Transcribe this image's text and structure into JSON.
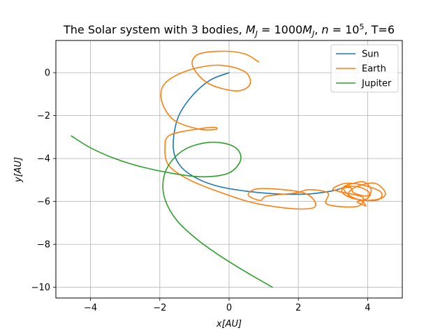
{
  "chart_data": {
    "type": "line",
    "title_parts": {
      "prefix": "The Solar system with 3 bodies, ",
      "m": "M",
      "m_sub": "J",
      "eq": " = 1000",
      "m2": "M",
      "m2_sub": "J",
      "sep": ", ",
      "n": "n",
      "n_eq": " = 10",
      "n_exp": "5",
      "suffix": ", T=6"
    },
    "xlabel_parts": {
      "var": "x",
      "unit": "[AU]"
    },
    "ylabel_parts": {
      "var": "y",
      "unit": "[AU]"
    },
    "xlim": [
      -5,
      5
    ],
    "ylim": [
      -10.5,
      1.5
    ],
    "xticks": [
      -4,
      -2,
      0,
      2,
      4
    ],
    "xtick_labels": [
      "−4",
      "−2",
      "0",
      "2",
      "4"
    ],
    "yticks": [
      0,
      -2,
      -4,
      -6,
      -8,
      -10
    ],
    "ytick_labels": [
      "0",
      "−2",
      "−4",
      "−6",
      "−8",
      "−10"
    ],
    "grid": true,
    "legend_position": "top-right",
    "series": [
      {
        "name": "Sun",
        "color": "#1f77b4",
        "points": [
          [
            0.0,
            0.0
          ],
          [
            -0.55,
            -0.35
          ],
          [
            -1.05,
            -1.05
          ],
          [
            -1.45,
            -2.0
          ],
          [
            -1.6,
            -3.0
          ],
          [
            -1.58,
            -3.8
          ],
          [
            -1.35,
            -4.45
          ],
          [
            -0.9,
            -4.95
          ],
          [
            -0.3,
            -5.3
          ],
          [
            0.5,
            -5.52
          ],
          [
            1.4,
            -5.65
          ],
          [
            2.3,
            -5.65
          ],
          [
            3.0,
            -5.5
          ],
          [
            3.3,
            -5.35
          ]
        ]
      },
      {
        "name": "Earth",
        "color": "#ff7f0e",
        "points": [
          [
            0.85,
            0.5
          ],
          [
            0.45,
            0.88
          ],
          [
            -0.2,
            1.0
          ],
          [
            -0.9,
            0.85
          ],
          [
            -1.05,
            0.3
          ],
          [
            -0.6,
            -0.5
          ],
          [
            0.2,
            -0.85
          ],
          [
            0.6,
            -0.55
          ],
          [
            0.45,
            0.05
          ],
          [
            -0.3,
            0.35
          ],
          [
            -1.2,
            0.1
          ],
          [
            -1.85,
            -0.5
          ],
          [
            -1.95,
            -1.3
          ],
          [
            -1.6,
            -2.2
          ],
          [
            -0.9,
            -2.62
          ],
          [
            -0.4,
            -2.65
          ],
          [
            -0.4,
            -2.55
          ],
          [
            -0.8,
            -2.6
          ],
          [
            -1.7,
            -2.9
          ],
          [
            -1.85,
            -3.5
          ],
          [
            -1.75,
            -4.3
          ],
          [
            -1.2,
            -4.95
          ],
          [
            -0.3,
            -5.55
          ],
          [
            0.8,
            -6.1
          ],
          [
            2.0,
            -6.35
          ],
          [
            2.5,
            -6.2
          ],
          [
            2.15,
            -5.6
          ],
          [
            0.9,
            -5.4
          ],
          [
            0.55,
            -5.7
          ],
          [
            0.9,
            -5.95
          ],
          [
            1.1,
            -5.75
          ],
          [
            1.95,
            -5.6
          ],
          [
            2.3,
            -5.45
          ],
          [
            2.85,
            -5.6
          ],
          [
            2.8,
            -6.1
          ],
          [
            3.3,
            -6.25
          ],
          [
            3.75,
            -6.2
          ],
          [
            3.85,
            -5.8
          ],
          [
            3.2,
            -5.55
          ],
          [
            3.0,
            -5.4
          ],
          [
            3.4,
            -5.15
          ],
          [
            4.0,
            -5.3
          ],
          [
            4.4,
            -5.6
          ],
          [
            4.25,
            -5.95
          ],
          [
            3.55,
            -5.85
          ],
          [
            3.45,
            -5.6
          ],
          [
            3.7,
            -5.3
          ],
          [
            4.2,
            -5.15
          ],
          [
            4.5,
            -5.55
          ],
          [
            4.4,
            -5.85
          ],
          [
            3.9,
            -5.95
          ],
          [
            3.5,
            -5.75
          ],
          [
            3.3,
            -5.35
          ],
          [
            3.6,
            -5.15
          ],
          [
            3.9,
            -5.1
          ],
          [
            4.1,
            -5.45
          ],
          [
            4.0,
            -5.85
          ],
          [
            3.7,
            -6.0
          ],
          [
            3.85,
            -6.15
          ],
          [
            3.95,
            -6.2
          ],
          [
            3.8,
            -5.95
          ],
          [
            3.4,
            -5.75
          ],
          [
            3.25,
            -5.5
          ],
          [
            3.4,
            -5.3
          ],
          [
            3.8,
            -5.35
          ],
          [
            4.05,
            -5.6
          ],
          [
            3.95,
            -5.75
          ],
          [
            3.6,
            -5.6
          ],
          [
            3.5,
            -5.35
          ],
          [
            3.2,
            -5.4
          ]
        ]
      },
      {
        "name": "Jupiter",
        "color": "#2ca02c",
        "points": [
          [
            -4.55,
            -2.95
          ],
          [
            -4.0,
            -3.5
          ],
          [
            -3.3,
            -4.0
          ],
          [
            -2.5,
            -4.4
          ],
          [
            -1.6,
            -4.7
          ],
          [
            -0.8,
            -4.85
          ],
          [
            -0.05,
            -4.7
          ],
          [
            0.3,
            -4.2
          ],
          [
            0.3,
            -3.7
          ],
          [
            0.0,
            -3.35
          ],
          [
            -0.6,
            -3.25
          ],
          [
            -1.25,
            -3.55
          ],
          [
            -1.7,
            -4.2
          ],
          [
            -1.9,
            -5.0
          ],
          [
            -1.85,
            -5.9
          ],
          [
            -1.5,
            -6.9
          ],
          [
            -0.9,
            -7.8
          ],
          [
            -0.2,
            -8.6
          ],
          [
            0.5,
            -9.3
          ],
          [
            1.25,
            -10.0
          ]
        ]
      }
    ]
  }
}
